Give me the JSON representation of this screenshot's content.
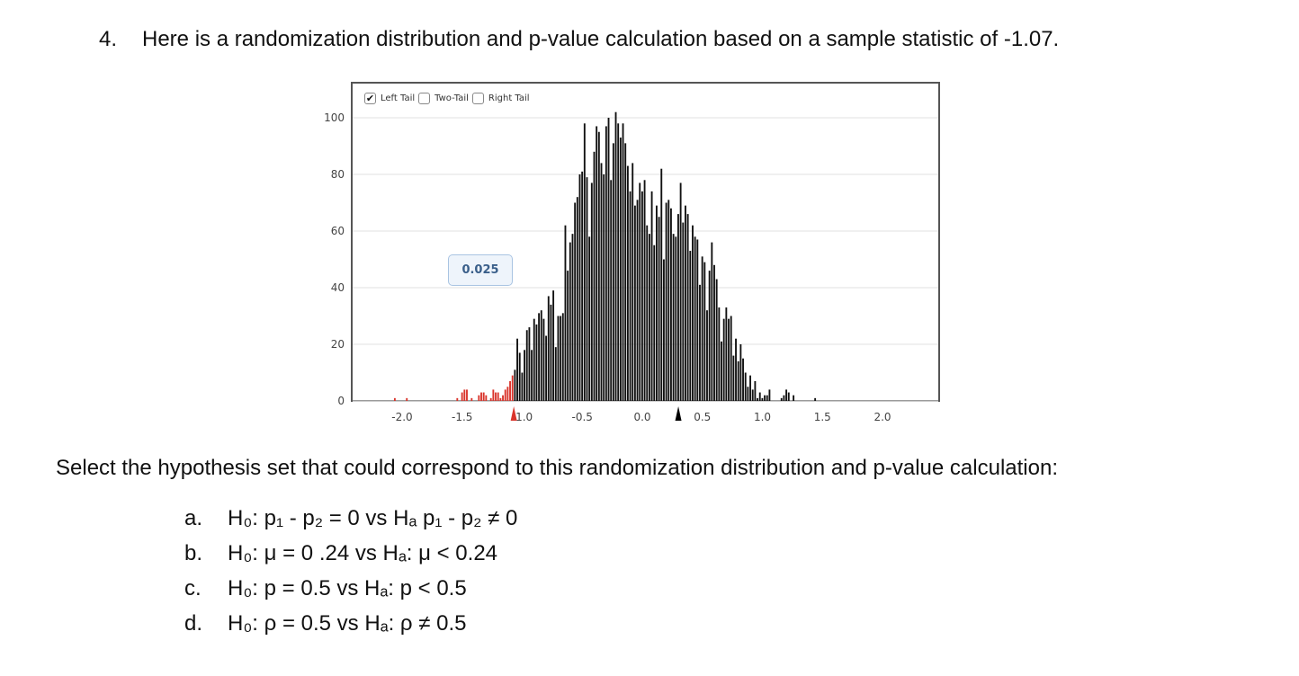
{
  "question": {
    "number": "4.",
    "text": "Here is a randomization distribution and p-value calculation based on a sample statistic of -1.07."
  },
  "tail_options": [
    {
      "label": "Left Tail",
      "checked": true
    },
    {
      "label": "Two-Tail",
      "checked": false
    },
    {
      "label": "Right Tail",
      "checked": false
    }
  ],
  "p_value_label": "0.025",
  "prompt": "Select the hypothesis set that could correspond to this randomization distribution and p-value calculation:",
  "choices": [
    {
      "letter": "a.",
      "text": "H₀: p₁ - p₂  = 0   vs Hₐ p₁ - p₂ ≠ 0"
    },
    {
      "letter": "b.",
      "text": "H₀: μ = 0 .24 vs Hₐ:  μ < 0.24"
    },
    {
      "letter": "c.",
      "text": "H₀: p = 0.5   vs Hₐ:  p < 0.5"
    },
    {
      "letter": "d.",
      "text": "H₀: ρ = 0.5   vs Hₐ:  ρ ≠ 0.5"
    }
  ],
  "chart_data": {
    "type": "bar",
    "title": "",
    "xlabel": "",
    "ylabel": "",
    "xlim": [
      -2.3,
      2.5
    ],
    "ylim": [
      0,
      110
    ],
    "x_ticks": [
      "-2.0",
      "-1.5",
      "-1.0",
      "-0.5",
      "0.0",
      "0.5",
      "1.0",
      "1.5",
      "2.0"
    ],
    "y_ticks": [
      "0",
      "20",
      "40",
      "60",
      "80",
      "100"
    ],
    "grid": "horizontal",
    "sample_statistic": -1.07,
    "null_center": 0.3,
    "tail": "left",
    "p_value": 0.025,
    "bin_width": 0.02,
    "bin_start": -2.07,
    "tail_color": "#d9342b",
    "bar_color": "#111111",
    "counts": [
      1,
      0,
      0,
      0,
      0,
      1,
      0,
      0,
      0,
      0,
      0,
      0,
      0,
      0,
      0,
      0,
      0,
      0,
      0,
      0,
      0,
      0,
      0,
      0,
      0,
      0,
      1,
      0,
      3,
      4,
      4,
      0,
      1,
      0,
      0,
      2,
      3,
      3,
      2,
      0,
      1,
      4,
      3,
      3,
      1,
      2,
      4,
      5,
      7,
      9,
      11,
      22,
      17,
      10,
      18,
      25,
      26,
      18,
      29,
      27,
      31,
      32,
      29,
      23,
      37,
      34,
      39,
      19,
      30,
      30,
      31,
      62,
      46,
      56,
      59,
      70,
      72,
      80,
      81,
      98,
      79,
      58,
      77,
      88,
      97,
      95,
      84,
      80,
      97,
      100,
      78,
      91,
      102,
      98,
      93,
      98,
      91,
      83,
      74,
      84,
      69,
      71,
      77,
      74,
      78,
      62,
      59,
      74,
      55,
      69,
      65,
      82,
      50,
      70,
      71,
      68,
      59,
      58,
      66,
      77,
      63,
      69,
      66,
      53,
      62,
      58,
      57,
      41,
      51,
      49,
      32,
      46,
      56,
      48,
      43,
      33,
      21,
      29,
      33,
      29,
      30,
      16,
      22,
      14,
      20,
      15,
      10,
      5,
      9,
      4,
      7,
      1,
      3,
      1,
      2,
      2,
      4,
      0,
      0,
      0,
      0,
      1,
      2,
      4,
      3,
      0,
      2,
      0,
      0,
      0,
      0,
      0,
      0,
      0,
      0,
      1
    ]
  }
}
